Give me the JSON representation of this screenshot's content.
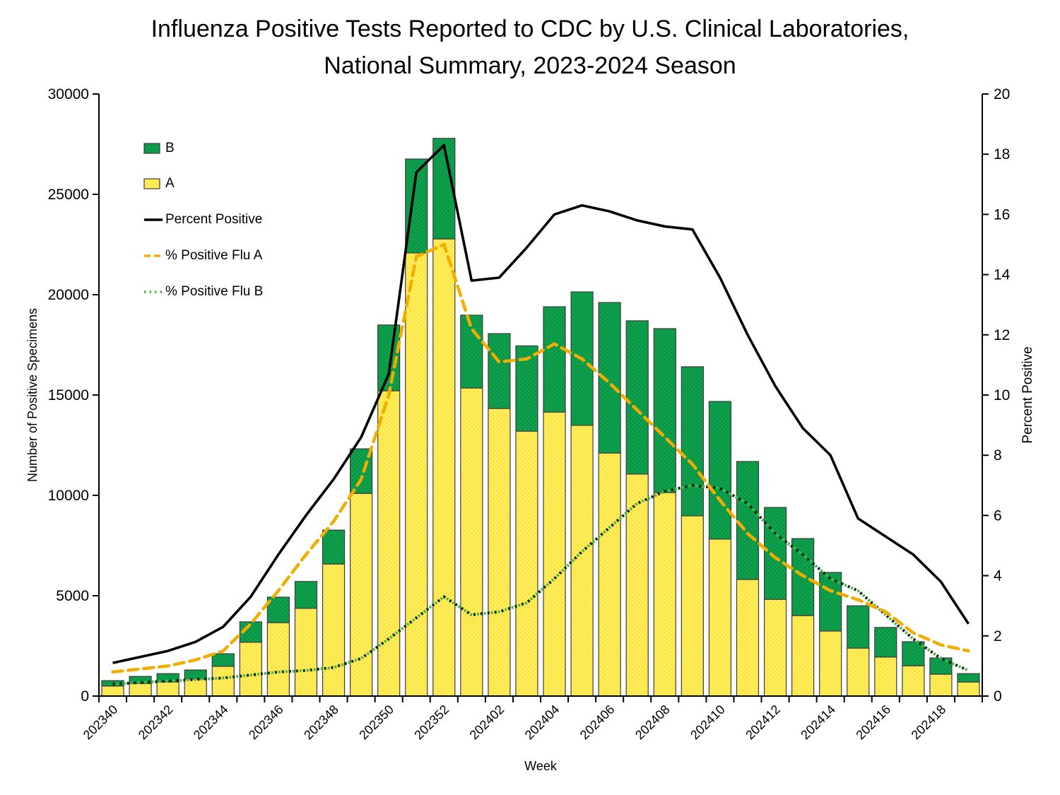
{
  "chart_data": {
    "type": "bar",
    "subtype": "stacked-bars-with-lines",
    "title": [
      "Influenza Positive Tests Reported to CDC by U.S. Clinical Laboratories,",
      "National Summary, 2023-2024 Season"
    ],
    "xlabel": "Week",
    "ylabel_left": "Number of Positive Specimens",
    "ylabel_right": "Percent Positive",
    "y_left": {
      "min": 0,
      "max": 30000,
      "step": 5000
    },
    "y_right": {
      "min": 0,
      "max": 20,
      "step": 2
    },
    "x_tick_every": 2,
    "grid": "off",
    "legend_position": "top-left-inside",
    "weeks": [
      "202340",
      "202341",
      "202342",
      "202343",
      "202344",
      "202345",
      "202346",
      "202347",
      "202348",
      "202349",
      "202350",
      "202351",
      "202352",
      "202401",
      "202402",
      "202403",
      "202404",
      "202405",
      "202406",
      "202407",
      "202408",
      "202409",
      "202410",
      "202411",
      "202412",
      "202413",
      "202414",
      "202415",
      "202416",
      "202417",
      "202418",
      "202419"
    ],
    "series": [
      {
        "name": "A",
        "type": "bar",
        "color": "#FFE63E",
        "dot_color": "#FFF6A0",
        "values": [
          500,
          620,
          700,
          850,
          1480,
          2680,
          3660,
          4370,
          6580,
          10100,
          15210,
          22080,
          22780,
          15350,
          14330,
          13200,
          14150,
          13490,
          12110,
          11060,
          10140,
          8980,
          7820,
          5810,
          4820,
          4010,
          3240,
          2390,
          1940,
          1510,
          1090,
          700
        ]
      },
      {
        "name": "B",
        "type": "bar",
        "color": "#0DA14C",
        "dot_color": "#0A7F3C",
        "values": [
          270,
          360,
          420,
          450,
          630,
          1020,
          1270,
          1340,
          1690,
          2220,
          3280,
          4680,
          5010,
          3630,
          3730,
          4250,
          5250,
          6650,
          7500,
          7640,
          8170,
          7430,
          6860,
          5880,
          4580,
          3840,
          2920,
          2110,
          1480,
          1200,
          810,
          420
        ]
      },
      {
        "name": "Percent Positive",
        "type": "line",
        "style": "solid",
        "color": "#000000",
        "values": [
          1.1,
          1.3,
          1.5,
          1.8,
          2.3,
          3.3,
          4.7,
          6.0,
          7.2,
          8.6,
          10.7,
          17.4,
          18.3,
          13.8,
          13.9,
          14.9,
          16.0,
          16.3,
          16.1,
          15.8,
          15.6,
          15.5,
          13.9,
          12.0,
          10.3,
          8.9,
          8.0,
          5.9,
          5.3,
          4.7,
          3.8,
          2.4
        ]
      },
      {
        "name": "% Positive Flu A",
        "type": "line",
        "style": "dashed",
        "color": "#F2AE00",
        "values": [
          0.8,
          0.9,
          1.0,
          1.2,
          1.5,
          2.4,
          3.5,
          4.7,
          5.8,
          7.2,
          10.0,
          14.6,
          15.0,
          12.2,
          11.1,
          11.2,
          11.7,
          11.2,
          10.4,
          9.5,
          8.6,
          7.7,
          6.5,
          5.4,
          4.6,
          4.0,
          3.5,
          3.2,
          2.8,
          2.1,
          1.7,
          1.5
        ]
      },
      {
        "name": "% Positive Flu B",
        "type": "line",
        "style": "dotted",
        "color": "#3FC13C",
        "values": [
          0.4,
          0.45,
          0.5,
          0.55,
          0.6,
          0.7,
          0.8,
          0.85,
          0.95,
          1.25,
          1.9,
          2.6,
          3.3,
          2.7,
          2.8,
          3.1,
          3.9,
          4.8,
          5.6,
          6.4,
          6.8,
          7.0,
          6.9,
          6.4,
          5.4,
          4.7,
          3.9,
          3.5,
          2.7,
          1.9,
          1.25,
          0.85
        ]
      }
    ],
    "legend": [
      "B",
      "A",
      "Percent Positive",
      "% Positive Flu A",
      "% Positive Flu B"
    ]
  },
  "colors": {
    "background": "#FFFFFF",
    "axis": "#000000",
    "bar_outline": "#3C3C3C"
  }
}
